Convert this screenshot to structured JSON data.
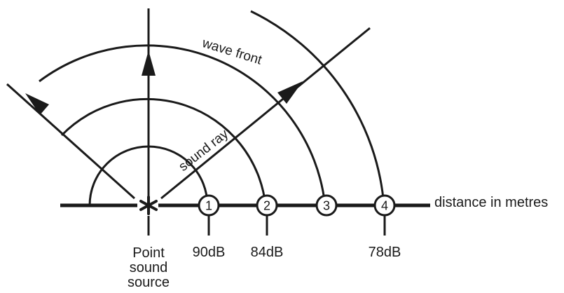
{
  "labels": {
    "wave_front": "wave front",
    "sound_ray": "sound ray",
    "axis": "distance in metres",
    "source_line1": "Point",
    "source_line2": "sound",
    "source_line3": "source"
  },
  "markers": [
    {
      "number": "1",
      "db": "90dB"
    },
    {
      "number": "2",
      "db": "84dB"
    },
    {
      "number": "3",
      "db": ""
    },
    {
      "number": "4",
      "db": "78dB"
    }
  ],
  "colors": {
    "stroke": "#1a1a1a",
    "background": "#ffffff"
  }
}
